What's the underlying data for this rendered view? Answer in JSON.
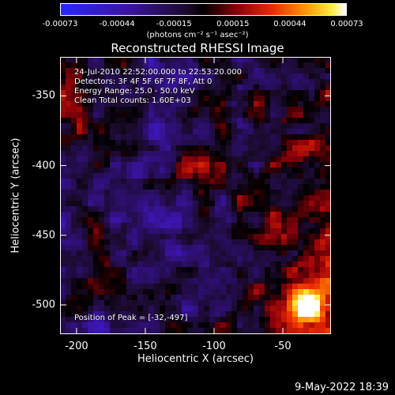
{
  "colorbar": {
    "ticks": [
      "-0.00073",
      "-0.00044",
      "-0.00015",
      "0.00015",
      "0.00044",
      "0.00073"
    ],
    "units": "(photons cm⁻² s⁻¹ asec⁻²)",
    "range": [
      -0.00073,
      0.00073
    ]
  },
  "chart_data": {
    "type": "heatmap",
    "title": "Reconstructed RHESSI Image",
    "xlabel": "Heliocentric X (arcsec)",
    "ylabel": "Heliocentric Y (arcsec)",
    "xlim": [
      -212,
      -15
    ],
    "ylim": [
      -521,
      -322
    ],
    "x_ticks": [
      "-200",
      "-150",
      "-100",
      "-50"
    ],
    "y_ticks": [
      "-350",
      "-400",
      "-450",
      "-500"
    ],
    "annotations": [
      "24-Jul-2010 22:52:00.000 to 22:53:20.000",
      "Detectors: 3F 4F 5F 6F 7F 8F, Att 0",
      "Energy Range: 25.0 - 50.0 keV",
      "Clean     Total counts: 1.60E+03"
    ],
    "peak_label": "Position of Peak = [-32,-497]",
    "peak": [
      -32,
      -497
    ]
  },
  "timestamp": "9-May-2022 18:39"
}
